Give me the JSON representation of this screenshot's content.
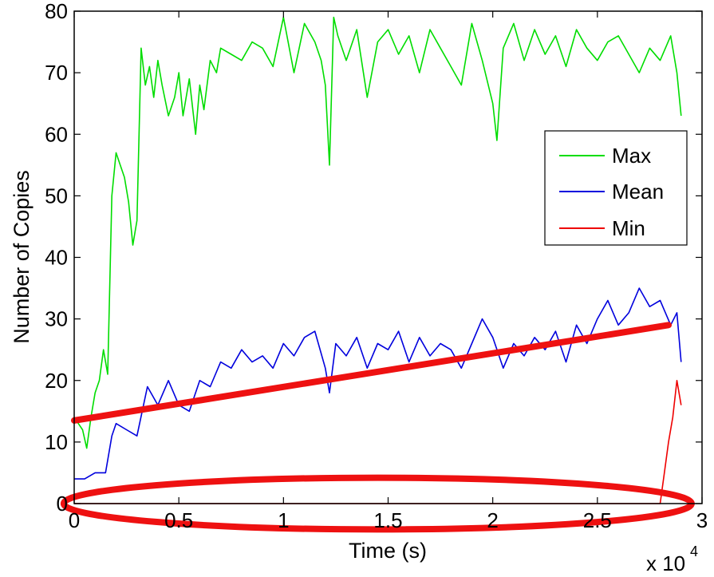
{
  "chart_data": {
    "type": "line",
    "title": "",
    "xlabel": "Time (s)",
    "ylabel": "Number of Copies",
    "x_multiplier_label": "x 10",
    "x_multiplier_exponent": "4",
    "xlim": [
      0,
      3
    ],
    "ylim": [
      0,
      80
    ],
    "x_ticks": [
      "0",
      "0.5",
      "1",
      "1.5",
      "2",
      "2.5",
      "3"
    ],
    "x_tick_values": [
      0,
      0.5,
      1,
      1.5,
      2,
      2.5,
      3
    ],
    "y_ticks": [
      "0",
      "10",
      "20",
      "30",
      "40",
      "50",
      "60",
      "70",
      "80"
    ],
    "y_tick_values": [
      0,
      10,
      20,
      30,
      40,
      50,
      60,
      70,
      80
    ],
    "grid": false,
    "legend": {
      "position": "right-middle",
      "entries": [
        "Max",
        "Mean",
        "Min"
      ]
    },
    "series": [
      {
        "name": "Max",
        "color": "#00dd00",
        "x": [
          0,
          0.02,
          0.04,
          0.06,
          0.08,
          0.1,
          0.12,
          0.14,
          0.16,
          0.18,
          0.2,
          0.22,
          0.24,
          0.26,
          0.28,
          0.3,
          0.32,
          0.34,
          0.36,
          0.38,
          0.4,
          0.42,
          0.45,
          0.48,
          0.5,
          0.52,
          0.55,
          0.58,
          0.6,
          0.62,
          0.65,
          0.68,
          0.7,
          0.75,
          0.8,
          0.85,
          0.9,
          0.95,
          1.0,
          1.05,
          1.1,
          1.15,
          1.18,
          1.2,
          1.22,
          1.24,
          1.26,
          1.3,
          1.35,
          1.4,
          1.45,
          1.5,
          1.55,
          1.6,
          1.65,
          1.7,
          1.75,
          1.8,
          1.85,
          1.9,
          1.95,
          2.0,
          2.02,
          2.05,
          2.1,
          2.15,
          2.2,
          2.25,
          2.3,
          2.35,
          2.4,
          2.45,
          2.5,
          2.55,
          2.6,
          2.65,
          2.7,
          2.75,
          2.8,
          2.85,
          2.88,
          2.9
        ],
        "y": [
          14,
          13,
          12,
          9,
          14,
          18,
          20,
          25,
          21,
          50,
          57,
          55,
          53,
          49,
          42,
          46,
          74,
          68,
          71,
          66,
          72,
          68,
          63,
          66,
          70,
          63,
          69,
          60,
          68,
          64,
          72,
          70,
          74,
          73,
          72,
          75,
          74,
          71,
          79,
          70,
          78,
          75,
          72,
          68,
          55,
          79,
          76,
          72,
          77,
          66,
          75,
          77,
          73,
          76,
          70,
          77,
          74,
          71,
          68,
          78,
          72,
          65,
          59,
          74,
          78,
          72,
          77,
          73,
          76,
          71,
          77,
          74,
          72,
          75,
          76,
          73,
          70,
          74,
          72,
          76,
          70,
          63
        ]
      },
      {
        "name": "Mean",
        "color": "#0000dd",
        "x": [
          0,
          0.05,
          0.1,
          0.15,
          0.18,
          0.2,
          0.25,
          0.3,
          0.35,
          0.4,
          0.45,
          0.5,
          0.55,
          0.6,
          0.65,
          0.7,
          0.75,
          0.8,
          0.85,
          0.9,
          0.95,
          1.0,
          1.05,
          1.1,
          1.15,
          1.2,
          1.22,
          1.25,
          1.3,
          1.35,
          1.4,
          1.45,
          1.5,
          1.55,
          1.6,
          1.65,
          1.7,
          1.75,
          1.8,
          1.85,
          1.9,
          1.95,
          2.0,
          2.05,
          2.1,
          2.15,
          2.2,
          2.25,
          2.3,
          2.35,
          2.4,
          2.45,
          2.5,
          2.55,
          2.6,
          2.65,
          2.7,
          2.75,
          2.8,
          2.85,
          2.88,
          2.9
        ],
        "y": [
          4,
          4,
          5,
          5,
          11,
          13,
          12,
          11,
          19,
          16,
          20,
          16,
          15,
          20,
          19,
          23,
          22,
          25,
          23,
          24,
          22,
          26,
          24,
          27,
          28,
          22,
          18,
          26,
          24,
          27,
          22,
          26,
          25,
          28,
          23,
          27,
          24,
          26,
          25,
          22,
          26,
          30,
          27,
          22,
          26,
          24,
          27,
          25,
          28,
          23,
          29,
          26,
          30,
          33,
          29,
          31,
          35,
          32,
          33,
          29,
          31,
          23
        ]
      },
      {
        "name": "Min",
        "color": "#ee0000",
        "x": [
          0,
          0.5,
          1.0,
          1.5,
          2.0,
          2.5,
          2.8,
          2.82,
          2.84,
          2.86,
          2.88,
          2.9
        ],
        "y": [
          0,
          0,
          0,
          0,
          0,
          0,
          0,
          5,
          10,
          14,
          20,
          16
        ]
      }
    ],
    "annotations": [
      {
        "type": "trend-line",
        "color": "#ee1111",
        "x": [
          0,
          2.84
        ],
        "y": [
          13.5,
          29
        ]
      },
      {
        "type": "ellipse",
        "color": "#ee1111",
        "center_x": 1.45,
        "center_y": 0,
        "radius_x_data": 1.5,
        "radius_y_data": 4.2
      }
    ]
  }
}
